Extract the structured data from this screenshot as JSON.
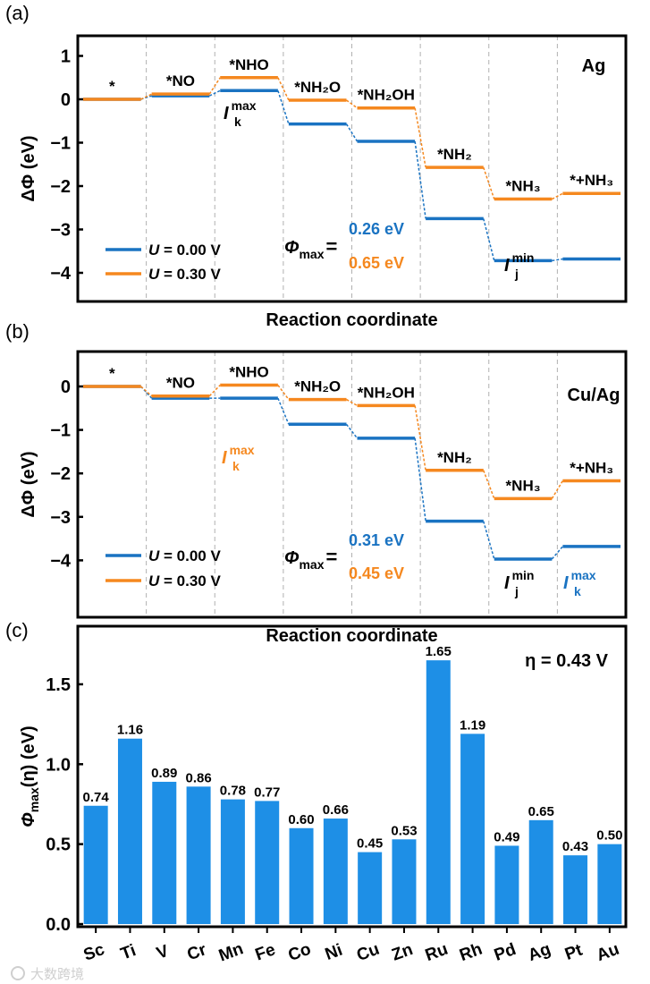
{
  "colors": {
    "blue": "#1a73c2",
    "orange": "#f5881f",
    "bar": "#1e8fe6",
    "grid": "#b0b0b0"
  },
  "chart_data": [
    {
      "type": "line",
      "panel_label": "(a)",
      "system": "Ag",
      "xlabel": "Reaction coordinate",
      "ylabel": "ΔΦ (eV)",
      "ylim": [
        -4.7,
        1.5
      ],
      "yticks": [
        1,
        0,
        -1,
        -2,
        -3,
        -4
      ],
      "ytick_labels": [
        "1",
        "0",
        "−1",
        "−2",
        "−3",
        "−4"
      ],
      "categories": [
        "*",
        "*NO",
        "*NHO",
        "*NH₂O",
        "*NH₂OH",
        "*NH₂",
        "*NH₃",
        "*+NH₃"
      ],
      "series": [
        {
          "name": "U = 0.00 V",
          "u_symbol": "U",
          "u_value": " = 0.00 V",
          "color": "blue",
          "values": [
            0,
            0.08,
            0.2,
            -0.57,
            -0.97,
            -2.75,
            -3.72,
            -3.68
          ]
        },
        {
          "name": "U = 0.30 V",
          "u_symbol": "U",
          "u_value": " = 0.30 V",
          "color": "orange",
          "values": [
            0,
            0.12,
            0.5,
            -0.02,
            -0.2,
            -1.57,
            -2.3,
            -2.17
          ]
        }
      ],
      "phi_max": {
        "symbol": "Φ",
        "sub": "max",
        "eq": "=",
        "values": [
          "0.26 eV",
          "0.65 eV"
        ]
      },
      "annotations": [
        {
          "main": "I",
          "sub": "k",
          "sup": "max",
          "color": "black"
        },
        {
          "main": "I",
          "sub": "j",
          "sup": "min",
          "color": "black"
        }
      ]
    },
    {
      "type": "line",
      "panel_label": "(b)",
      "system": "Cu/Ag",
      "xlabel": "Reaction coordinate",
      "ylabel": "ΔΦ (eV)",
      "ylim": [
        -4.8,
        0.8
      ],
      "yticks": [
        0,
        -1,
        -2,
        -3,
        -4
      ],
      "ytick_labels": [
        "0",
        "−1",
        "−2",
        "−3",
        "−4"
      ],
      "categories": [
        "*",
        "*NO",
        "*NHO",
        "*NH₂O",
        "*NH₂OH",
        "*NH₂",
        "*NH₃",
        "*+NH₃"
      ],
      "series": [
        {
          "name": "U = 0.00 V",
          "u_symbol": "U",
          "u_value": " = 0.00 V",
          "color": "blue",
          "values": [
            0,
            -0.27,
            -0.27,
            -0.87,
            -1.19,
            -3.1,
            -3.97,
            -3.68
          ]
        },
        {
          "name": "U = 0.30 V",
          "u_symbol": "U",
          "u_value": " = 0.30 V",
          "color": "orange",
          "values": [
            0,
            -0.22,
            0.03,
            -0.3,
            -0.44,
            -1.93,
            -2.58,
            -2.17
          ]
        }
      ],
      "phi_max": {
        "symbol": "Φ",
        "sub": "max",
        "eq": "=",
        "values": [
          "0.31 eV",
          "0.45 eV"
        ]
      },
      "annotations": [
        {
          "main": "I",
          "sub": "k",
          "sup": "max",
          "color": "orange"
        },
        {
          "main": "I",
          "sub": "j",
          "sup": "min",
          "color": "black"
        },
        {
          "main": "I",
          "sub": "k",
          "sup": "max",
          "color": "blue"
        }
      ]
    },
    {
      "type": "bar",
      "panel_label": "(c)",
      "ylabel_main": "Φ",
      "ylabel_sub": "max",
      "ylabel_rest": "(η) (eV)",
      "note": "η = 0.43 V",
      "ylim": [
        0,
        1.85
      ],
      "yticks": [
        0,
        0.5,
        1.0,
        1.5
      ],
      "ytick_labels": [
        "0.0",
        "0.5",
        "1.0",
        "1.5"
      ],
      "categories": [
        "Sc",
        "Ti",
        "V",
        "Cr",
        "Mn",
        "Fe",
        "Co",
        "Ni",
        "Cu",
        "Zn",
        "Ru",
        "Rh",
        "Pd",
        "Ag",
        "Pt",
        "Au"
      ],
      "values": [
        0.74,
        1.16,
        0.89,
        0.86,
        0.78,
        0.77,
        0.6,
        0.66,
        0.45,
        0.53,
        1.65,
        1.19,
        0.49,
        0.65,
        0.43,
        0.5
      ],
      "value_labels": [
        "0.74",
        "1.16",
        "0.89",
        "0.86",
        "0.78",
        "0.77",
        "0.60",
        "0.66",
        "0.45",
        "0.53",
        "1.65",
        "1.19",
        "0.49",
        "0.65",
        "0.43",
        "0.50"
      ]
    }
  ],
  "watermark": "大数跨境"
}
